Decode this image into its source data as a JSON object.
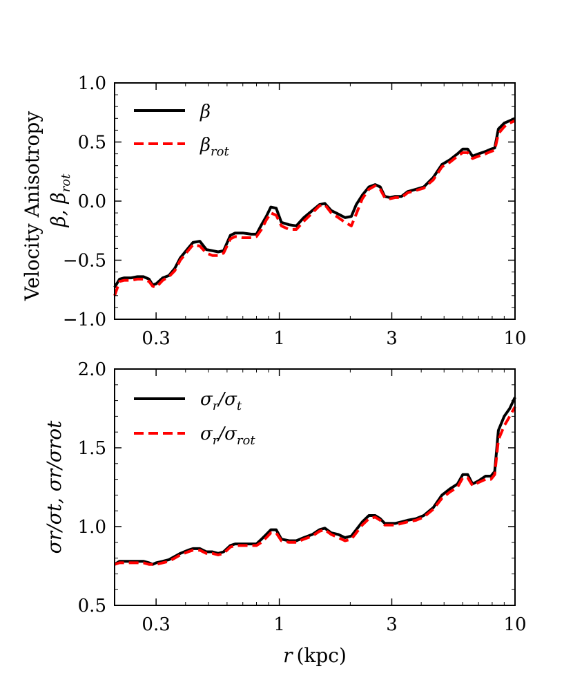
{
  "chart_data": [
    {
      "type": "line",
      "panel": "top",
      "xscale": "log",
      "xlim": [
        0.2,
        10
      ],
      "ylim": [
        -1.0,
        1.0
      ],
      "xticks": [
        0.3,
        1,
        3,
        10
      ],
      "xtick_labels": [
        "0.3",
        "1",
        "3",
        "10"
      ],
      "yticks": [
        -1.0,
        -0.5,
        0.0,
        0.5,
        1.0
      ],
      "ytick_labels": [
        "−1.0",
        "−0.5",
        "0.0",
        "0.5",
        "1.0"
      ],
      "ylabel_line1": "Velocity Anisotropy",
      "ylabel_line2": "β, β",
      "ylabel_line2_sub": "rot",
      "legend_position": "top-left",
      "series": [
        {
          "name": "β",
          "sub": "",
          "color": "#000000",
          "style": "solid",
          "x": [
            0.2,
            0.21,
            0.22,
            0.235,
            0.25,
            0.265,
            0.28,
            0.29,
            0.3,
            0.32,
            0.34,
            0.36,
            0.38,
            0.41,
            0.43,
            0.46,
            0.49,
            0.52,
            0.55,
            0.58,
            0.62,
            0.65,
            0.7,
            0.76,
            0.8,
            0.84,
            0.88,
            0.92,
            0.97,
            1.02,
            1.1,
            1.18,
            1.27,
            1.38,
            1.48,
            1.56,
            1.66,
            1.78,
            1.9,
            2.02,
            2.12,
            2.25,
            2.4,
            2.55,
            2.68,
            2.8,
            2.95,
            3.1,
            3.3,
            3.5,
            3.8,
            4.1,
            4.5,
            4.9,
            5.3,
            5.7,
            6.0,
            6.3,
            6.6,
            7.0,
            7.5,
            7.9,
            8.2,
            8.5,
            9.0,
            9.5,
            10.0
          ],
          "values": [
            -0.73,
            -0.66,
            -0.65,
            -0.65,
            -0.64,
            -0.64,
            -0.66,
            -0.71,
            -0.7,
            -0.65,
            -0.63,
            -0.57,
            -0.48,
            -0.4,
            -0.35,
            -0.34,
            -0.41,
            -0.42,
            -0.43,
            -0.42,
            -0.29,
            -0.27,
            -0.27,
            -0.28,
            -0.28,
            -0.2,
            -0.13,
            -0.05,
            -0.06,
            -0.18,
            -0.2,
            -0.21,
            -0.14,
            -0.08,
            -0.03,
            -0.02,
            -0.08,
            -0.11,
            -0.14,
            -0.13,
            -0.03,
            0.05,
            0.12,
            0.14,
            0.12,
            0.04,
            0.03,
            0.04,
            0.04,
            0.08,
            0.1,
            0.12,
            0.2,
            0.31,
            0.35,
            0.4,
            0.44,
            0.44,
            0.38,
            0.4,
            0.42,
            0.44,
            0.45,
            0.61,
            0.66,
            0.68,
            0.7
          ]
        },
        {
          "name": "β",
          "sub": "rot",
          "color": "#ff0000",
          "style": "dashed",
          "x": [
            0.2,
            0.21,
            0.22,
            0.235,
            0.25,
            0.265,
            0.28,
            0.29,
            0.3,
            0.32,
            0.34,
            0.36,
            0.38,
            0.41,
            0.43,
            0.46,
            0.49,
            0.52,
            0.55,
            0.58,
            0.62,
            0.65,
            0.7,
            0.76,
            0.8,
            0.84,
            0.88,
            0.92,
            0.97,
            1.02,
            1.1,
            1.18,
            1.27,
            1.38,
            1.48,
            1.56,
            1.66,
            1.78,
            1.9,
            2.02,
            2.12,
            2.25,
            2.4,
            2.55,
            2.68,
            2.8,
            2.95,
            3.1,
            3.3,
            3.5,
            3.8,
            4.1,
            4.5,
            4.9,
            5.3,
            5.7,
            6.0,
            6.3,
            6.6,
            7.0,
            7.5,
            7.9,
            8.2,
            8.5,
            9.0,
            9.5,
            10.0
          ],
          "values": [
            -0.8,
            -0.68,
            -0.67,
            -0.67,
            -0.66,
            -0.66,
            -0.68,
            -0.72,
            -0.73,
            -0.67,
            -0.64,
            -0.59,
            -0.5,
            -0.42,
            -0.37,
            -0.38,
            -0.44,
            -0.46,
            -0.46,
            -0.44,
            -0.32,
            -0.3,
            -0.31,
            -0.31,
            -0.3,
            -0.24,
            -0.16,
            -0.1,
            -0.12,
            -0.21,
            -0.24,
            -0.24,
            -0.17,
            -0.1,
            -0.04,
            -0.03,
            -0.1,
            -0.14,
            -0.18,
            -0.21,
            -0.11,
            0.02,
            0.1,
            0.13,
            0.1,
            0.03,
            0.02,
            0.03,
            0.03,
            0.07,
            0.09,
            0.11,
            0.18,
            0.29,
            0.33,
            0.38,
            0.41,
            0.41,
            0.36,
            0.38,
            0.4,
            0.42,
            0.43,
            0.57,
            0.63,
            0.66,
            0.68
          ]
        }
      ]
    },
    {
      "type": "line",
      "panel": "bottom",
      "xscale": "log",
      "xlim": [
        0.2,
        10
      ],
      "ylim": [
        0.5,
        2.0
      ],
      "xticks": [
        0.3,
        1,
        3,
        10
      ],
      "xtick_labels": [
        "0.3",
        "1",
        "3",
        "10"
      ],
      "yticks": [
        0.5,
        1.0,
        1.5,
        2.0
      ],
      "ytick_labels": [
        "0.5",
        "1.0",
        "1.5",
        "2.0"
      ],
      "xlabel_var": "r",
      "xlabel_unit": "(kpc)",
      "ylabel": "σr/σt, σr/σrot",
      "legend_position": "top-left",
      "series": [
        {
          "name": "σ",
          "sub": "r",
          "name2": "/σ",
          "sub2": "t",
          "color": "#000000",
          "style": "solid",
          "x": [
            0.2,
            0.21,
            0.22,
            0.235,
            0.25,
            0.265,
            0.28,
            0.29,
            0.3,
            0.32,
            0.34,
            0.36,
            0.38,
            0.41,
            0.43,
            0.46,
            0.49,
            0.52,
            0.55,
            0.58,
            0.62,
            0.65,
            0.7,
            0.76,
            0.8,
            0.84,
            0.88,
            0.92,
            0.97,
            1.02,
            1.1,
            1.18,
            1.27,
            1.38,
            1.48,
            1.56,
            1.66,
            1.78,
            1.9,
            2.02,
            2.12,
            2.25,
            2.4,
            2.55,
            2.68,
            2.8,
            2.95,
            3.1,
            3.3,
            3.5,
            3.8,
            4.1,
            4.5,
            4.9,
            5.3,
            5.7,
            6.0,
            6.3,
            6.6,
            7.0,
            7.5,
            7.9,
            8.2,
            8.5,
            9.0,
            9.5,
            10.0
          ],
          "values": [
            0.76,
            0.78,
            0.78,
            0.78,
            0.78,
            0.78,
            0.77,
            0.76,
            0.77,
            0.78,
            0.79,
            0.81,
            0.83,
            0.85,
            0.86,
            0.86,
            0.84,
            0.84,
            0.83,
            0.84,
            0.88,
            0.89,
            0.89,
            0.89,
            0.89,
            0.92,
            0.95,
            0.98,
            0.98,
            0.92,
            0.91,
            0.91,
            0.93,
            0.95,
            0.98,
            0.99,
            0.96,
            0.95,
            0.93,
            0.94,
            0.98,
            1.03,
            1.07,
            1.07,
            1.05,
            1.02,
            1.02,
            1.02,
            1.03,
            1.04,
            1.05,
            1.07,
            1.12,
            1.2,
            1.24,
            1.27,
            1.33,
            1.33,
            1.27,
            1.29,
            1.32,
            1.32,
            1.35,
            1.61,
            1.7,
            1.75,
            1.82
          ]
        },
        {
          "name": "σ",
          "sub": "r",
          "name2": "/σ",
          "sub2": "rot",
          "color": "#ff0000",
          "style": "dashed",
          "x": [
            0.2,
            0.21,
            0.22,
            0.235,
            0.25,
            0.265,
            0.28,
            0.29,
            0.3,
            0.32,
            0.34,
            0.36,
            0.38,
            0.41,
            0.43,
            0.46,
            0.49,
            0.52,
            0.55,
            0.58,
            0.62,
            0.65,
            0.7,
            0.76,
            0.8,
            0.84,
            0.88,
            0.92,
            0.97,
            1.02,
            1.1,
            1.18,
            1.27,
            1.38,
            1.48,
            1.56,
            1.66,
            1.78,
            1.9,
            2.02,
            2.12,
            2.25,
            2.4,
            2.55,
            2.68,
            2.8,
            2.95,
            3.1,
            3.3,
            3.5,
            3.8,
            4.1,
            4.5,
            4.9,
            5.3,
            5.7,
            6.0,
            6.3,
            6.6,
            7.0,
            7.5,
            7.9,
            8.2,
            8.5,
            9.0,
            9.5,
            10.0
          ],
          "values": [
            0.76,
            0.77,
            0.77,
            0.77,
            0.77,
            0.77,
            0.76,
            0.76,
            0.76,
            0.77,
            0.78,
            0.8,
            0.82,
            0.84,
            0.85,
            0.85,
            0.83,
            0.83,
            0.82,
            0.83,
            0.87,
            0.88,
            0.88,
            0.88,
            0.88,
            0.9,
            0.93,
            0.96,
            0.96,
            0.91,
            0.9,
            0.9,
            0.92,
            0.94,
            0.97,
            0.98,
            0.95,
            0.93,
            0.91,
            0.92,
            0.96,
            1.01,
            1.05,
            1.06,
            1.04,
            1.01,
            1.01,
            1.01,
            1.02,
            1.03,
            1.04,
            1.06,
            1.11,
            1.18,
            1.22,
            1.25,
            1.31,
            1.31,
            1.26,
            1.28,
            1.3,
            1.3,
            1.33,
            1.55,
            1.64,
            1.7,
            1.76
          ]
        }
      ]
    }
  ]
}
